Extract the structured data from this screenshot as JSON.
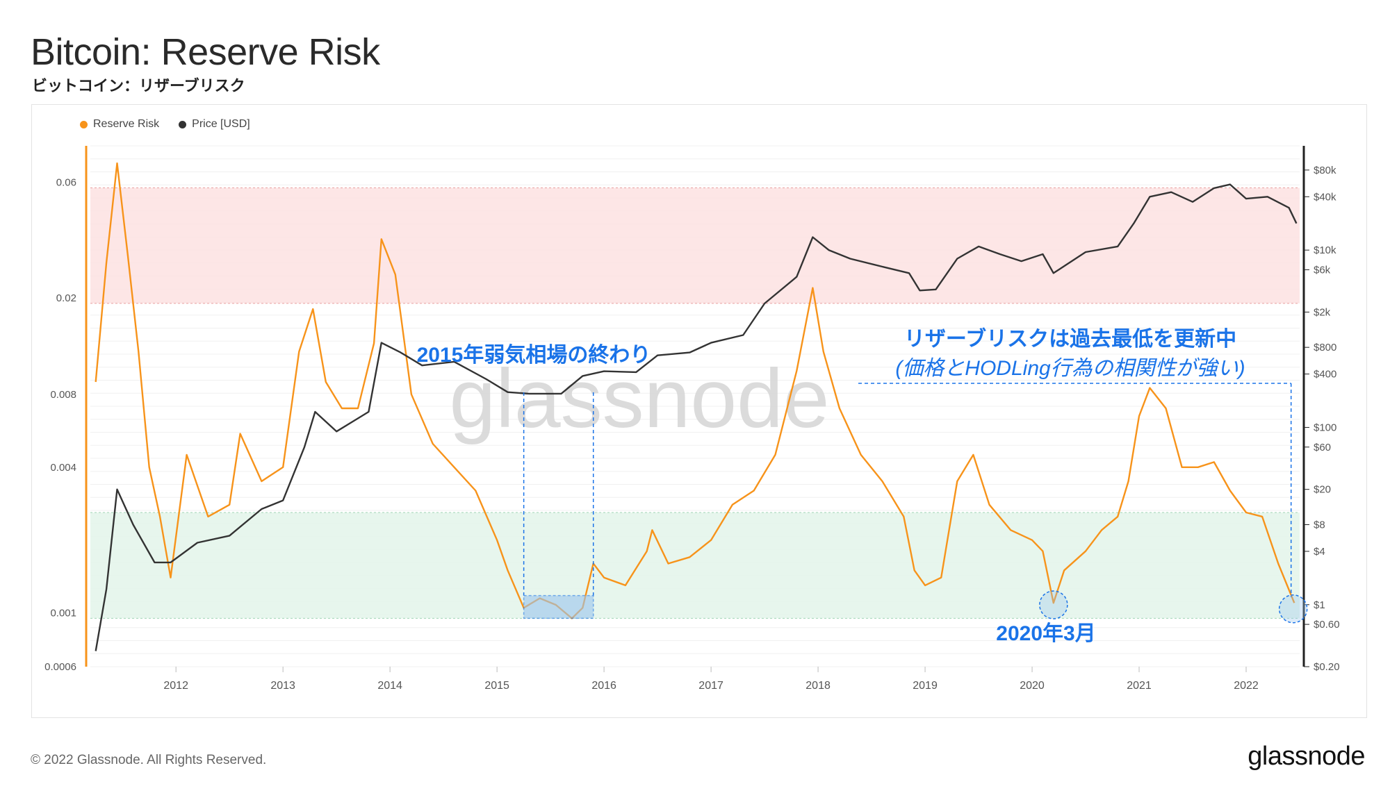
{
  "title": "Bitcoin: Reserve Risk",
  "subtitle": "ビットコイン：リザーブリスク",
  "legend": {
    "reserve_risk": "Reserve Risk",
    "price": "Price [USD]"
  },
  "watermark": "glassnode",
  "footer": "© 2022 Glassnode. All Rights Reserved.",
  "brand": "glassnode",
  "annotations": {
    "bear_end": "2015年弱気相場の終わり",
    "record_low_line1": "リザーブリスクは過去最低を更新中",
    "record_low_line2": "(価格とHODLing行為の相関性が強い)",
    "march_2020": "2020年3月"
  },
  "colors": {
    "reserve_risk": "#f7931a",
    "price": "#333333",
    "high_zone": "#fde2e2",
    "low_zone": "#e3f4ea",
    "annotation": "#1a73e8"
  },
  "chart_data": {
    "type": "line",
    "x_range": [
      2011.2,
      2022.5
    ],
    "x_ticks": [
      "2012",
      "2013",
      "2014",
      "2015",
      "2016",
      "2017",
      "2018",
      "2019",
      "2020",
      "2021",
      "2022"
    ],
    "y_left": {
      "scale": "log",
      "range": [
        0.0006,
        0.085
      ],
      "ticks": [
        "0.06",
        "0.02",
        "0.008",
        "0.004",
        "0.001",
        "0.0006"
      ]
    },
    "y_right": {
      "scale": "log",
      "range": [
        0.2,
        150000
      ],
      "ticks": [
        "$80k",
        "$40k",
        "$10k",
        "$6k",
        "$2k",
        "$800",
        "$400",
        "$100",
        "$60",
        "$20",
        "$8",
        "$4",
        "$1",
        "$0.60",
        "$0.20"
      ]
    },
    "zones": [
      {
        "name": "high",
        "from": 0.019,
        "to": 0.057
      },
      {
        "name": "low",
        "from": 0.00095,
        "to": 0.0026
      }
    ],
    "series": [
      {
        "name": "Reserve Risk",
        "axis": "left",
        "x": [
          2011.25,
          2011.35,
          2011.45,
          2011.55,
          2011.65,
          2011.75,
          2011.85,
          2011.95,
          2012.1,
          2012.3,
          2012.5,
          2012.6,
          2012.8,
          2013.0,
          2013.15,
          2013.28,
          2013.4,
          2013.55,
          2013.7,
          2013.85,
          2013.92,
          2014.05,
          2014.2,
          2014.4,
          2014.6,
          2014.8,
          2015.0,
          2015.1,
          2015.25,
          2015.4,
          2015.55,
          2015.7,
          2015.8,
          2015.9,
          2016.0,
          2016.2,
          2016.4,
          2016.45,
          2016.6,
          2016.8,
          2017.0,
          2017.2,
          2017.4,
          2017.6,
          2017.8,
          2017.95,
          2018.05,
          2018.2,
          2018.4,
          2018.6,
          2018.8,
          2018.9,
          2019.0,
          2019.15,
          2019.3,
          2019.45,
          2019.6,
          2019.8,
          2020.0,
          2020.1,
          2020.2,
          2020.3,
          2020.5,
          2020.65,
          2020.8,
          2020.9,
          2021.0,
          2021.1,
          2021.25,
          2021.4,
          2021.55,
          2021.7,
          2021.85,
          2022.0,
          2022.15,
          2022.3,
          2022.45
        ],
        "y": [
          0.009,
          0.028,
          0.072,
          0.03,
          0.012,
          0.004,
          0.0025,
          0.0014,
          0.0045,
          0.0025,
          0.0028,
          0.0055,
          0.0035,
          0.004,
          0.012,
          0.018,
          0.009,
          0.007,
          0.007,
          0.013,
          0.035,
          0.025,
          0.008,
          0.005,
          0.004,
          0.0032,
          0.002,
          0.0015,
          0.00105,
          0.00115,
          0.00108,
          0.00095,
          0.00105,
          0.0016,
          0.0014,
          0.0013,
          0.0018,
          0.0022,
          0.0016,
          0.0017,
          0.002,
          0.0028,
          0.0032,
          0.0045,
          0.01,
          0.022,
          0.012,
          0.007,
          0.0045,
          0.0035,
          0.0025,
          0.0015,
          0.0013,
          0.0014,
          0.0035,
          0.0045,
          0.0028,
          0.0022,
          0.002,
          0.0018,
          0.0011,
          0.0015,
          0.0018,
          0.0022,
          0.0025,
          0.0035,
          0.0065,
          0.0085,
          0.007,
          0.004,
          0.004,
          0.0042,
          0.0032,
          0.0026,
          0.0025,
          0.0016,
          0.0011
        ]
      },
      {
        "name": "Price [USD]",
        "axis": "right",
        "x": [
          2011.25,
          2011.35,
          2011.45,
          2011.6,
          2011.8,
          2011.95,
          2012.2,
          2012.5,
          2012.8,
          2013.0,
          2013.2,
          2013.3,
          2013.5,
          2013.8,
          2013.92,
          2014.1,
          2014.3,
          2014.6,
          2014.9,
          2015.1,
          2015.3,
          2015.6,
          2015.8,
          2016.0,
          2016.3,
          2016.5,
          2016.8,
          2017.0,
          2017.3,
          2017.5,
          2017.8,
          2017.95,
          2018.1,
          2018.3,
          2018.6,
          2018.85,
          2018.95,
          2019.1,
          2019.3,
          2019.5,
          2019.7,
          2019.9,
          2020.1,
          2020.2,
          2020.5,
          2020.8,
          2020.95,
          2021.1,
          2021.3,
          2021.5,
          2021.7,
          2021.85,
          2022.0,
          2022.2,
          2022.4,
          2022.47
        ],
        "y": [
          0.3,
          1.5,
          20,
          8,
          3,
          3,
          5,
          6,
          12,
          15,
          60,
          150,
          90,
          150,
          900,
          700,
          500,
          550,
          350,
          250,
          240,
          240,
          380,
          430,
          420,
          650,
          700,
          900,
          1100,
          2500,
          5000,
          14000,
          10000,
          8000,
          6500,
          5500,
          3500,
          3600,
          8000,
          11000,
          9000,
          7500,
          9000,
          5500,
          9500,
          11000,
          20000,
          40000,
          45000,
          35000,
          50000,
          55000,
          38000,
          40000,
          30000,
          20000
        ]
      }
    ]
  }
}
